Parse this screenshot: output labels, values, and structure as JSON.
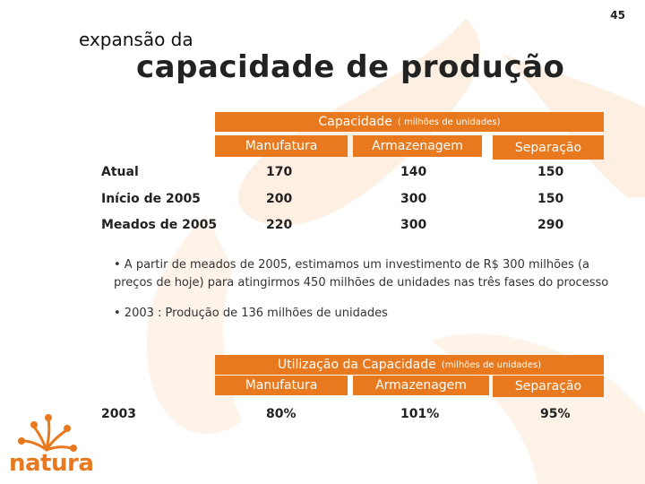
{
  "page_number": "45",
  "title": {
    "line1": "expansão da",
    "line2": "capacidade de produção"
  },
  "capacity_table": {
    "header_title": "Capacidade",
    "header_unit": "( milhões de unidades)",
    "columns": [
      "Manufatura",
      "Armazenagem",
      "Separação"
    ],
    "rows": [
      {
        "label": "Atual",
        "values": [
          "170",
          "140",
          "150"
        ]
      },
      {
        "label": "Início de 2005",
        "values": [
          "200",
          "300",
          "150"
        ]
      },
      {
        "label": "Meados de 2005",
        "values": [
          "220",
          "300",
          "290"
        ]
      }
    ]
  },
  "bullets": [
    "• A partir de meados de 2005, estimamos um investimento de R$ 300 milhões (a preços de hoje) para atingirmos 450 milhões de unidades nas três fases do processo",
    "• 2003 : Produção de 136 milhões de unidades"
  ],
  "utilization_table": {
    "header_title": "Utilização da Capacidade",
    "header_unit": "(milhões de unidades)",
    "columns": [
      "Manufatura",
      "Armazenagem",
      "Separação"
    ],
    "rows": [
      {
        "label": "2003",
        "values": [
          "80%",
          "101%",
          "95%"
        ]
      }
    ]
  },
  "logo": {
    "text": "natura",
    "color": "#e8791e"
  },
  "colors": {
    "accent": "#e8791e",
    "swirl": "#fbe6d0"
  }
}
